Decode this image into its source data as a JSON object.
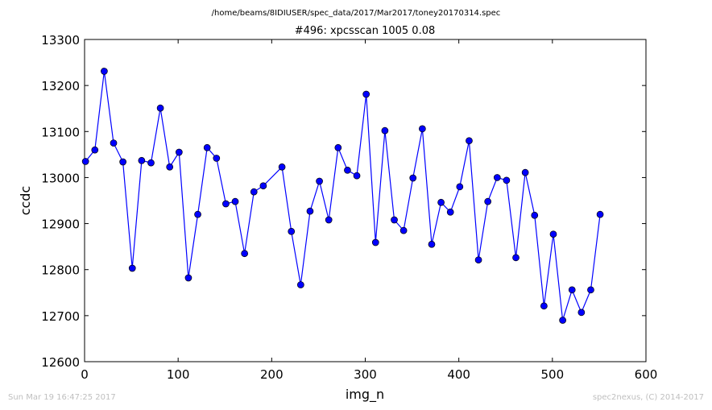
{
  "header": {
    "path": "/home/beams/8IDIUSER/spec_data/2017/Mar2017/toney20170314.spec"
  },
  "footer": {
    "timestamp": "Sun Mar 19 16:47:25 2017",
    "credit": "spec2nexus, (C) 2014-2017"
  },
  "chart_data": {
    "type": "line",
    "title": "#496: xpcsscan 1005 0.08",
    "xlabel": "img_n",
    "ylabel": "ccdc",
    "xlim": [
      0,
      600
    ],
    "ylim": [
      12600,
      13300
    ],
    "xticks": [
      0,
      100,
      200,
      300,
      400,
      500,
      600
    ],
    "yticks": [
      12600,
      12700,
      12800,
      12900,
      13000,
      13100,
      13200,
      13300
    ],
    "grid": false,
    "legend": "none",
    "colors": {
      "line": "#0000ff",
      "marker": "#0000ff",
      "marker_edge": "#000000"
    },
    "series": [
      {
        "x": [
          1,
          11,
          21,
          31,
          41,
          51,
          61,
          71,
          81,
          91,
          101,
          111,
          121,
          131,
          141,
          151,
          161,
          171,
          181,
          191,
          211,
          221,
          231,
          241,
          251,
          261,
          271,
          281,
          291,
          301,
          311,
          321,
          331,
          341,
          351,
          361,
          371,
          381,
          391,
          401,
          411,
          421,
          431,
          441,
          451,
          461,
          471,
          481,
          491,
          501,
          511,
          521,
          531,
          541,
          551
        ],
        "values": [
          13035,
          13060,
          13231,
          13075,
          13034,
          12803,
          13037,
          13032,
          13151,
          13023,
          13055,
          12782,
          12920,
          13065,
          13042,
          12943,
          12948,
          12835,
          12969,
          12982,
          13023,
          12883,
          12767,
          12927,
          12992,
          12908,
          13065,
          13016,
          13004,
          13181,
          12859,
          13102,
          12908,
          12885,
          12999,
          13106,
          12855,
          12946,
          12925,
          12980,
          13080,
          12821,
          12948,
          13000,
          12994,
          12826,
          13011,
          12918,
          12721,
          12877,
          12690,
          12756,
          12707,
          12756,
          12920
        ]
      }
    ]
  }
}
